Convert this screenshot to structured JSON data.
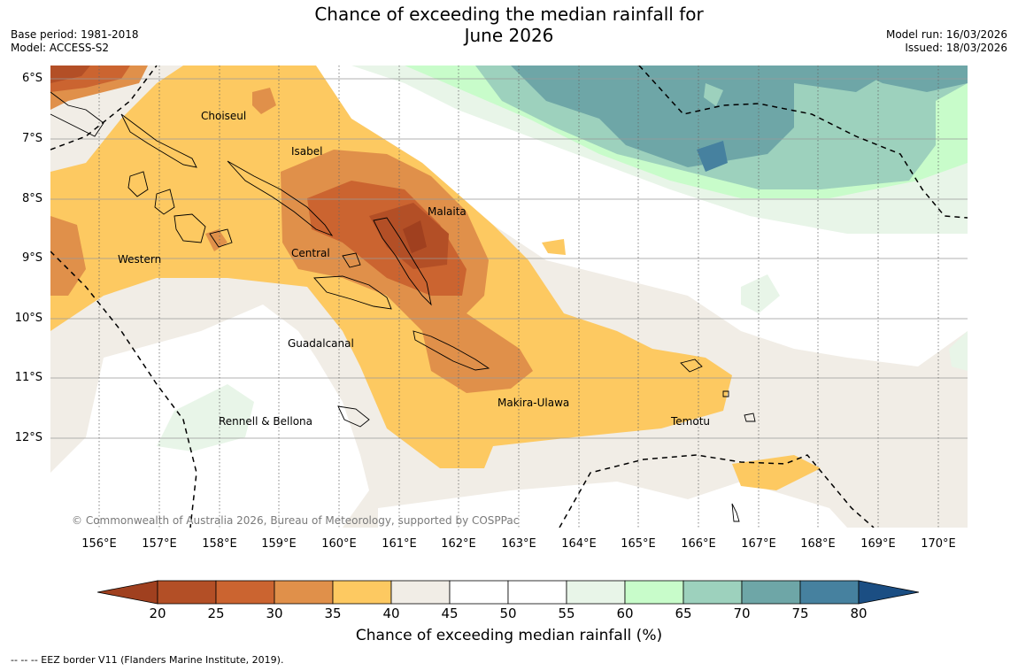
{
  "title_line1": "Chance of exceeding the median rainfall for",
  "title_line2": "June 2026",
  "meta_left": {
    "base_period": "Base period: 1981-2018",
    "model": "Model: ACCESS-S2"
  },
  "meta_right": {
    "model_run": "Model run: 16/03/2026",
    "issued": "Issued: 18/03/2026"
  },
  "latitudes": [
    "6°S",
    "7°S",
    "8°S",
    "9°S",
    "10°S",
    "11°S",
    "12°S"
  ],
  "longitudes": [
    "156°E",
    "157°E",
    "158°E",
    "159°E",
    "160°E",
    "161°E",
    "162°E",
    "163°E",
    "164°E",
    "165°E",
    "166°E",
    "167°E",
    "168°E",
    "169°E",
    "170°E"
  ],
  "regions": [
    "Choiseul",
    "Isabel",
    "Malaita",
    "Western",
    "Central",
    "Guadalcanal",
    "Makira-Ulawa",
    "Rennell & Bellona",
    "Temotu"
  ],
  "copyright": "© Commonwealth of Australia 2026, Bureau of Meteorology, supported by COSPPac",
  "colorbar": {
    "ticks": [
      "20",
      "25",
      "30",
      "35",
      "40",
      "45",
      "50",
      "55",
      "60",
      "65",
      "70",
      "75",
      "80"
    ],
    "colors": [
      "#a0401f",
      "#b34f26",
      "#cb6430",
      "#e0904a",
      "#fdc961",
      "#f1ede6",
      "#ffffff",
      "#ffffff",
      "#e8f5e8",
      "#c8fcca",
      "#9dd1bd",
      "#6ea6a7",
      "#46819f",
      "#1b4e83"
    ],
    "label": "Chance of exceeding median rainfall (%)"
  },
  "eez_note": "--  --  -- EEZ border V11 (Flanders Marine Institute, 2019)."
}
